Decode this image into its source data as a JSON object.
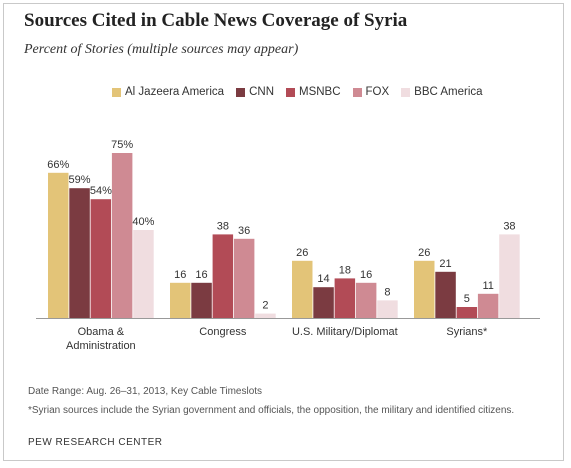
{
  "title": "Sources Cited in Cable News Coverage of Syria",
  "subtitle": "Percent of Stories (multiple sources may appear)",
  "chart_data": {
    "type": "bar",
    "title": "Sources Cited in Cable News Coverage of Syria",
    "subtitle": "Percent of Stories (multiple sources may appear)",
    "categories": [
      [
        "Obama &",
        "Administration"
      ],
      [
        "Congress"
      ],
      [
        "U.S. Military/Diplomat"
      ],
      [
        "Syrians*"
      ]
    ],
    "series": [
      {
        "name": "Al Jazeera America",
        "color": "#e3c478",
        "values": [
          66,
          16,
          26,
          26
        ],
        "labels": [
          "66%",
          "16",
          "26",
          "26"
        ]
      },
      {
        "name": "CNN",
        "color": "#7b3b41",
        "values": [
          59,
          16,
          14,
          21
        ],
        "labels": [
          "59%",
          "16",
          "14",
          "21"
        ]
      },
      {
        "name": "MSNBC",
        "color": "#b24b56",
        "values": [
          54,
          38,
          18,
          5
        ],
        "labels": [
          "54%",
          "38",
          "18",
          "5"
        ]
      },
      {
        "name": "FOX",
        "color": "#cf8a93",
        "values": [
          75,
          36,
          16,
          11
        ],
        "labels": [
          "75%",
          "36",
          "16",
          "11"
        ]
      },
      {
        "name": "BBC America",
        "color": "#f0dde0",
        "values": [
          40,
          2,
          8,
          38
        ],
        "labels": [
          "40%",
          "2",
          "8",
          "38"
        ]
      }
    ],
    "ylim": [
      0,
      80
    ],
    "grid": false,
    "legend": "top"
  },
  "footer": {
    "date_range": "Date Range: Aug. 26–31, 2013, Key Cable Timeslots",
    "note": "*Syrian sources include the Syrian government and officials, the opposition, the military and identified citizens.",
    "source": "PEW RESEARCH CENTER"
  }
}
